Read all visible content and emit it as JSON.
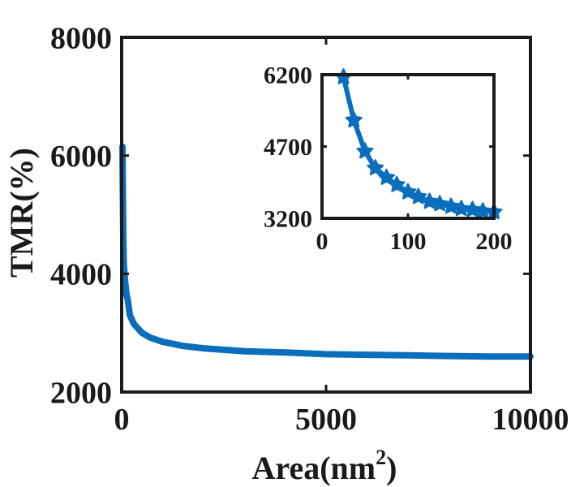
{
  "chart_data": [
    {
      "type": "line",
      "xlabel": "Area(nm",
      "xlabel_superscript": "2",
      "xlabel_suffix": ")",
      "ylabel": "TMR(%)",
      "xlim": [
        0,
        10000
      ],
      "ylim": [
        2000,
        8000
      ],
      "xticks": [
        0,
        5000,
        10000
      ],
      "yticks": [
        2000,
        4000,
        6000,
        8000
      ],
      "xtick_labels": [
        "0",
        "5000",
        "10000"
      ],
      "ytick_labels": [
        "2000",
        "4000",
        "6000",
        "8000"
      ],
      "grid": false,
      "series": [
        {
          "color": "#0a6ebd",
          "x": [
            20,
            30,
            40,
            50,
            80,
            120,
            150,
            200,
            300,
            500,
            700,
            1000,
            1500,
            2000,
            3000,
            4000,
            5000,
            6000,
            7000,
            8000,
            9000,
            10000
          ],
          "y": [
            6150,
            5300,
            4600,
            4200,
            3900,
            3650,
            3550,
            3300,
            3150,
            3000,
            2920,
            2850,
            2780,
            2740,
            2690,
            2670,
            2640,
            2630,
            2620,
            2610,
            2600,
            2600
          ]
        }
      ]
    },
    {
      "type": "line",
      "xlim": [
        0,
        200
      ],
      "ylim": [
        3200,
        6200
      ],
      "xticks": [
        0,
        100,
        200
      ],
      "yticks": [
        3200,
        4700,
        6200
      ],
      "xtick_labels": [
        "0",
        "100",
        "200"
      ],
      "ytick_labels": [
        "3200",
        "4700",
        "6200"
      ],
      "grid": false,
      "series": [
        {
          "color": "#0a6ebd",
          "marker": "star",
          "x": [
            25,
            37,
            50,
            62,
            75,
            87,
            100,
            112,
            125,
            137,
            150,
            162,
            175,
            187,
            200
          ],
          "y": [
            6150,
            5250,
            4600,
            4250,
            4050,
            3900,
            3750,
            3650,
            3550,
            3500,
            3450,
            3400,
            3380,
            3350,
            3330
          ]
        }
      ]
    }
  ]
}
